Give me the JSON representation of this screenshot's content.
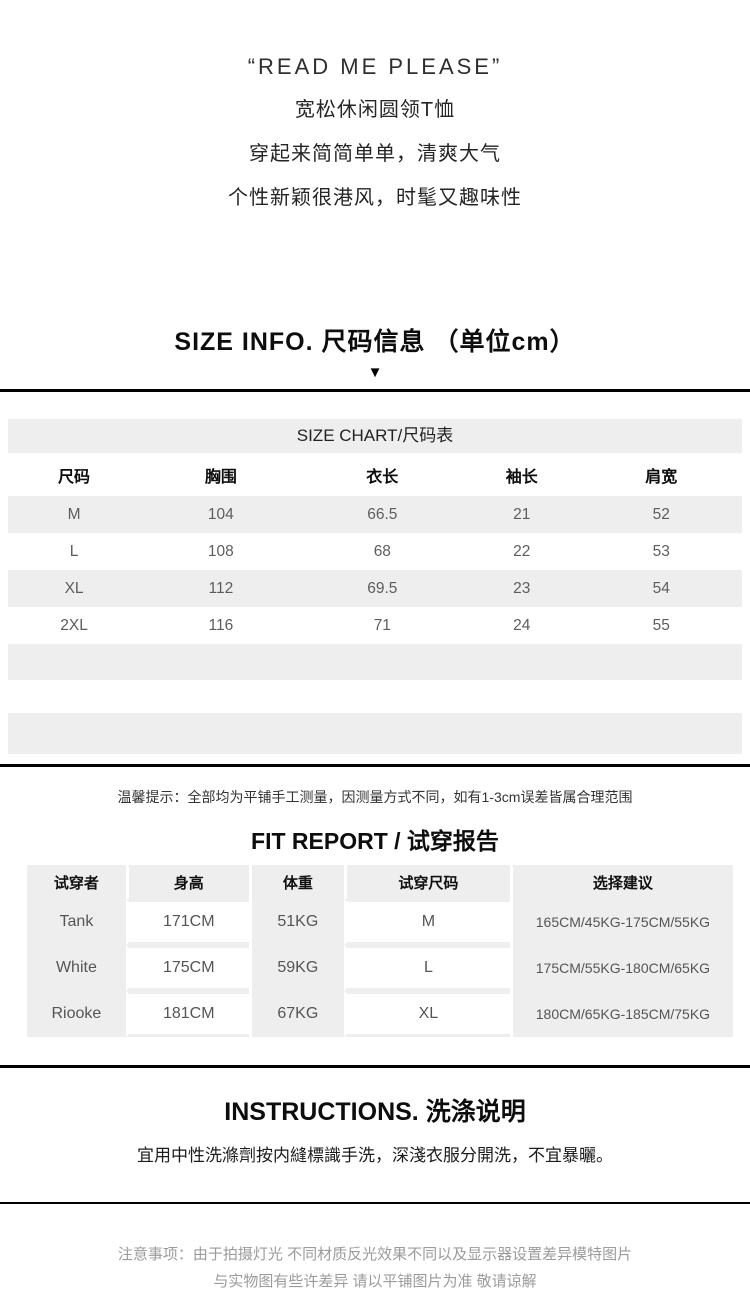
{
  "intro": {
    "quote": "“READ ME PLEASE”",
    "line1": "宽松休闲圆领T恤",
    "line2": "穿起来简简单单，清爽大气",
    "line3": "个性新颖很港风，时髦又趣味性"
  },
  "size_info": {
    "heading": "SIZE INFO. 尺码信息 （单位cm）",
    "arrow": "▼"
  },
  "size_chart": {
    "title": "SIZE CHART/尺码表",
    "columns": [
      "尺码",
      "胸围",
      "衣长",
      "袖长",
      "肩宽"
    ],
    "rows": [
      {
        "size": "M",
        "chest": "104",
        "length": "66.5",
        "sleeve": "21",
        "shoulder": "52"
      },
      {
        "size": "L",
        "chest": "108",
        "length": "68",
        "sleeve": "22",
        "shoulder": "53"
      },
      {
        "size": "XL",
        "chest": "112",
        "length": "69.5",
        "sleeve": "23",
        "shoulder": "54"
      },
      {
        "size": "2XL",
        "chest": "116",
        "length": "71",
        "sleeve": "24",
        "shoulder": "55"
      }
    ]
  },
  "tip": "温馨提示：全部均为平铺手工测量，因测量方式不同，如有1-3cm误差皆属合理范围",
  "fit_report": {
    "heading": "FIT REPORT / 试穿报告",
    "columns": [
      "试穿者",
      "身高",
      "体重",
      "试穿尺码",
      "选择建议"
    ],
    "rows": [
      {
        "name": "Tank",
        "height": "171CM",
        "weight": "51KG",
        "size": "M",
        "advice": "165CM/45KG-175CM/55KG"
      },
      {
        "name": "White",
        "height": "175CM",
        "weight": "59KG",
        "size": "L",
        "advice": "175CM/55KG-180CM/65KG"
      },
      {
        "name": "Riooke",
        "height": "181CM",
        "weight": "67KG",
        "size": "XL",
        "advice": "180CM/65KG-185CM/75KG"
      }
    ]
  },
  "instructions": {
    "heading": "INSTRUCTIONS. 洗涤说明",
    "text": "宜用中性洗滌劑按内縫標識手洗，深淺衣服分開洗，不宜暴曬。"
  },
  "notice": {
    "line1": "注意事项：由于拍摄灯光 不同材质反光效果不同以及显示器设置差异模特图片",
    "line2": "与实物图有些许差异 请以平铺图片为准 敬请谅解"
  },
  "colors": {
    "band_gray": "#eeeeee",
    "divider_black": "#000000",
    "value_gray": "#5d5d5d",
    "note_gray": "#9b9b9b"
  }
}
